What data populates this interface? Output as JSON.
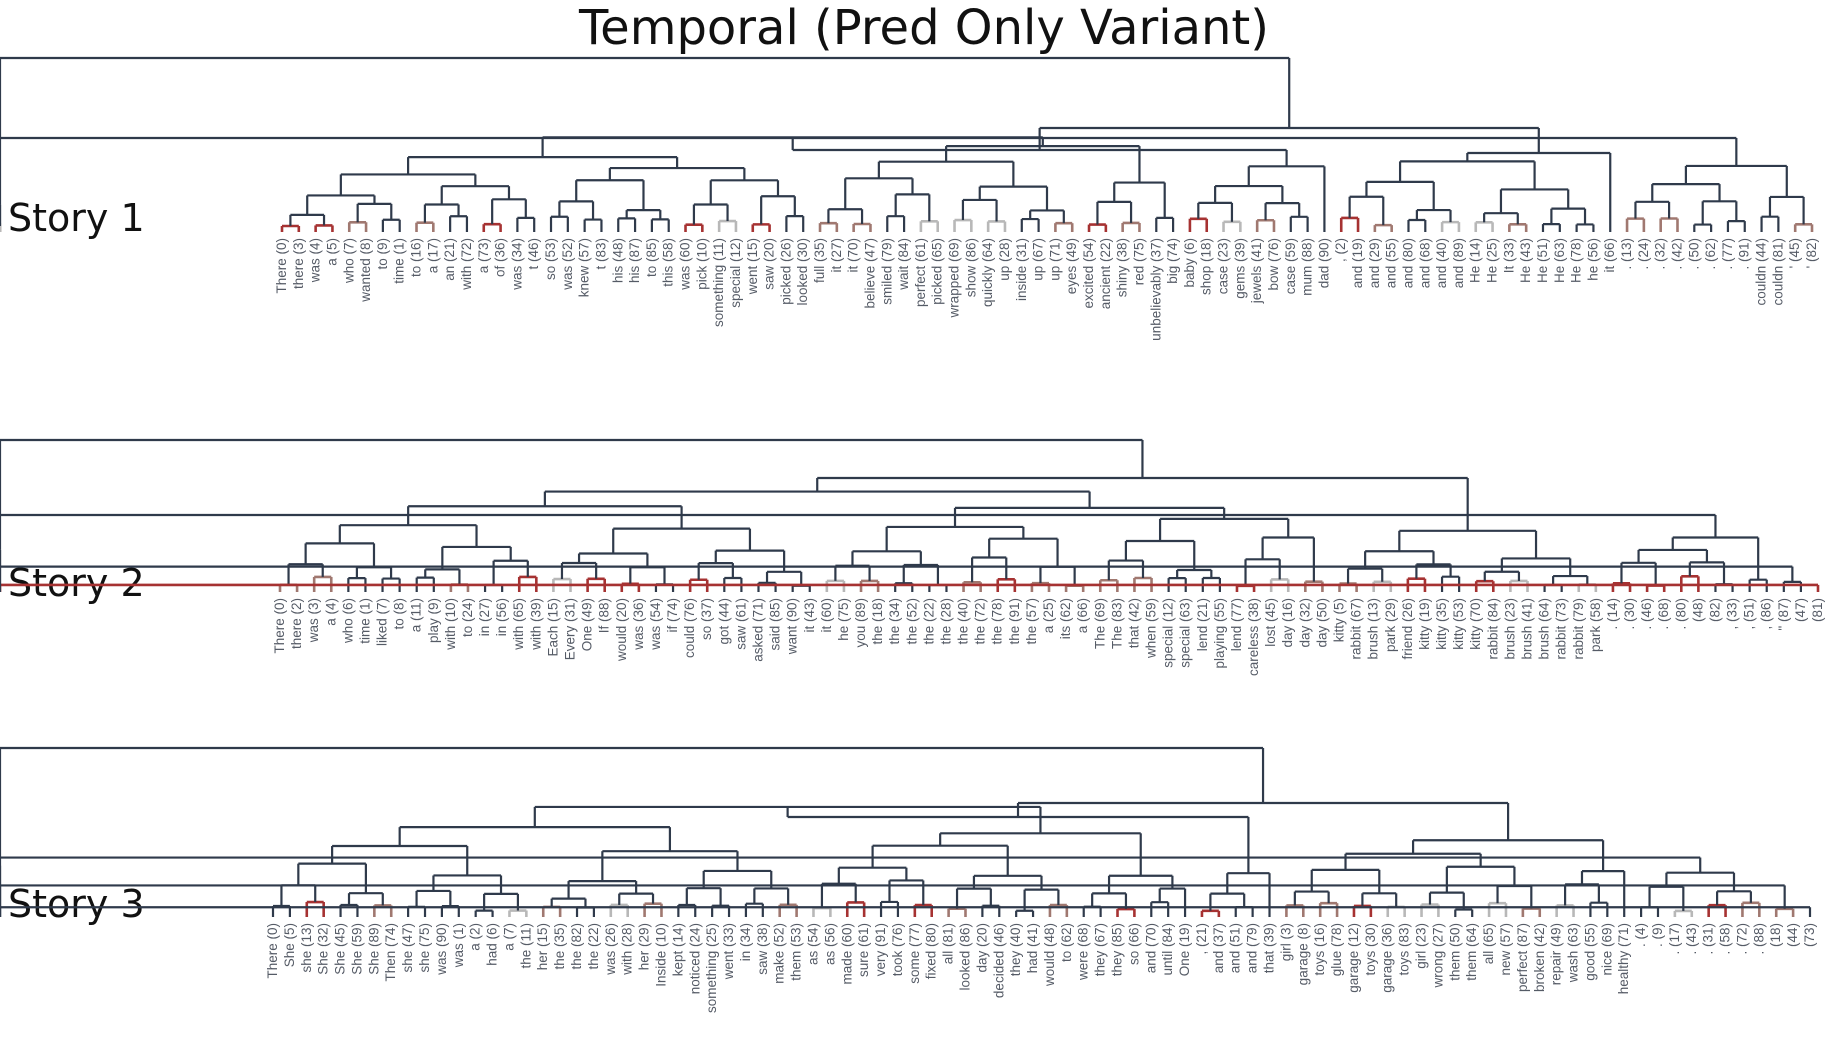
{
  "title": "Temporal (Pred Only Variant)",
  "colors": {
    "dark": "#2f3a4b",
    "red": "#a63232",
    "brown": "#a07870",
    "gray": "#b8b8b8"
  },
  "stories": [
    {
      "label": "Story 1",
      "leaves": [
        "There (0)",
        "there (3)",
        "was (4)",
        "a (5)",
        "who (7)",
        "wanted (8)",
        "to (9)",
        "time (1)",
        "to (16)",
        "a (17)",
        "an (21)",
        "with (72)",
        "a (73)",
        "of (36)",
        "was (34)",
        "t (46)",
        "so (53)",
        "was (52)",
        "knew (57)",
        "t (83)",
        "his (48)",
        "his (87)",
        "to (85)",
        "this (58)",
        "was (60)",
        "pick (10)",
        "something (11)",
        "special (12)",
        "went (15)",
        "saw (20)",
        "picked (26)",
        "looked (30)",
        "full (35)",
        "it (27)",
        "it (70)",
        "believe (47)",
        "smiled (79)",
        "wait (84)",
        "perfect (61)",
        "picked (65)",
        "wrapped (69)",
        "show (86)",
        "quickly (64)",
        "up (28)",
        "inside (31)",
        "up (67)",
        "up (71)",
        "eyes (49)",
        "excited (54)",
        "ancient (22)",
        "shiny (38)",
        "red (75)",
        "unbelievably (37)",
        "big (74)",
        "baby (6)",
        "shop (18)",
        "case (23)",
        "gems (39)",
        "jewels (41)",
        "bow (76)",
        "case (59)",
        "mum (88)",
        "dad (90)",
        ", (2)",
        "and (19)",
        "and (29)",
        "and (55)",
        "and (80)",
        "and (68)",
        "and (40)",
        "and (89)",
        "He (14)",
        "He (25)",
        "It (33)",
        "He (43)",
        "He (51)",
        "He (63)",
        "He (78)",
        "he (56)",
        "it (66)",
        ". (13)",
        ". (24)",
        ". (32)",
        ". (42)",
        ". (50)",
        ". (62)",
        ". (77)",
        ". (91)",
        "couldn (44)",
        "couldn (81)",
        "' (45)",
        "' (82)"
      ]
    },
    {
      "label": "Story 2",
      "leaves": [
        "There (0)",
        "there (2)",
        "was (3)",
        "a (4)",
        "who (6)",
        "time (1)",
        "liked (7)",
        "to (8)",
        "a (11)",
        "play (9)",
        "with (10)",
        "to (24)",
        "in (27)",
        "in (56)",
        "with (65)",
        "with (39)",
        "Each (15)",
        "Every (31)",
        "One (49)",
        "If (88)",
        "would (20)",
        "was (36)",
        "was (54)",
        "if (74)",
        "could (76)",
        "so (37)",
        "got (44)",
        "saw (61)",
        "asked (71)",
        "said (85)",
        "want (90)",
        "it (43)",
        "it (60)",
        "he (75)",
        "you (89)",
        "the (18)",
        "the (34)",
        "the (52)",
        "the (22)",
        "the (28)",
        "the (40)",
        "the (72)",
        "the (78)",
        "the (91)",
        "the (57)",
        "a (25)",
        "its (62)",
        "a (66)",
        "The (69)",
        "The (83)",
        "that (42)",
        "when (59)",
        "special (12)",
        "special (63)",
        "lend (21)",
        "playing (55)",
        "lend (77)",
        "careless (38)",
        "lost (45)",
        "day (16)",
        "day (32)",
        "day (50)",
        "kitty (5)",
        "rabbit (67)",
        "brush (13)",
        "park (29)",
        "friend (26)",
        "kitty (19)",
        "kitty (35)",
        "kitty (53)",
        "kitty (70)",
        "rabbit (84)",
        "brush (23)",
        "brush (41)",
        "brush (64)",
        "rabbit (73)",
        "rabbit (79)",
        "park (58)",
        ". (14)",
        ". (30)",
        ". (46)",
        ". (68)",
        ". (80)",
        "(48)",
        "(82)",
        ", (33)",
        ", (51)",
        ", (86)",
        "\" (87)",
        "(47)",
        "(81)"
      ]
    },
    {
      "label": "Story 3",
      "leaves": [
        "There (0)",
        "She (5)",
        "she (13)",
        "She (32)",
        "She (45)",
        "She (59)",
        "She (89)",
        "Then (74)",
        "she (47)",
        "she (75)",
        "was (90)",
        "was (1)",
        "a (2)",
        "had (6)",
        "a (7)",
        "the (11)",
        "her (15)",
        "the (35)",
        "the (82)",
        "the (22)",
        "was (26)",
        "with (28)",
        "her (29)",
        "Inside (10)",
        "kept (14)",
        "noticed (24)",
        "something (25)",
        "went (33)",
        "in (34)",
        "saw (38)",
        "make (52)",
        "them (53)",
        "as (54)",
        "as (56)",
        "made (60)",
        "sure (61)",
        "very (91)",
        "took (76)",
        "some (77)",
        "fixed (80)",
        "all (81)",
        "looked (86)",
        "day (20)",
        "decided (46)",
        "they (40)",
        "had (41)",
        "would (48)",
        "to (62)",
        "were (68)",
        "they (67)",
        "they (85)",
        "so (66)",
        "and (70)",
        "until (84)",
        "One (19)",
        ", (21)",
        "and (37)",
        "and (51)",
        "and (79)",
        "that (39)",
        "girl (3)",
        "garage (8)",
        "toys (16)",
        "glue (78)",
        "garage (12)",
        "toys (30)",
        "garage (36)",
        "toys (83)",
        "girl (23)",
        "wrong (27)",
        "them (50)",
        "them (64)",
        "all (65)",
        "new (57)",
        "perfect (87)",
        "broken (42)",
        "repair (49)",
        "wash (63)",
        "good (55)",
        "nice (69)",
        "healthy (71)",
        ". (4)",
        ". (9)",
        ". (17)",
        ". (43)",
        ". (31)",
        ". (58)",
        ". (72)",
        ". (88)",
        "(18)",
        "(44)",
        "(73)"
      ]
    }
  ]
}
